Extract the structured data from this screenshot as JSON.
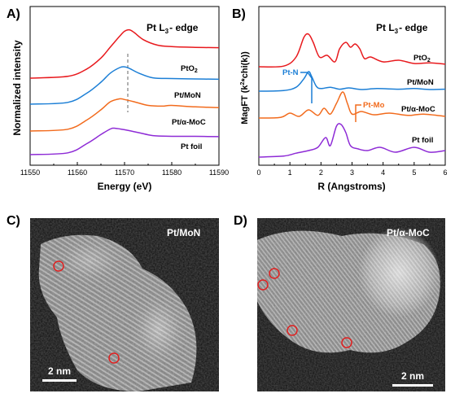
{
  "panels": {
    "a": {
      "letter": "A)",
      "title_main": "Pt L",
      "title_sub": "3",
      "title_tail": "- edge",
      "ylabel": "Normalized intensity",
      "xlabel": "Energy (eV)",
      "xticks": [
        "11550",
        "11560",
        "11570",
        "11580",
        "11590"
      ],
      "colors": {
        "PtO2": "#e8191d",
        "Pt/MoN": "#1c7fd6",
        "Pt/a-MoC": "#f26b1d",
        "Pt foil": "#8e2bd6"
      },
      "labels": {
        "PtO2_main": "PtO",
        "PtO2_sub": "2",
        "PtMoN": "Pt/MoN",
        "PtMoC": "Pt/α-MoC",
        "Ptfoil": "Pt foil"
      }
    },
    "b": {
      "letter": "B)",
      "title_main": "Pt L",
      "title_sub": "3",
      "title_tail": "- edge",
      "ylabel_pre": "MagFT (k",
      "ylabel_sup": "2",
      "ylabel_post": "*chi(k))",
      "xlabel": "R (Angstroms)",
      "xticks": [
        "0",
        "1",
        "2",
        "3",
        "4",
        "5",
        "6"
      ],
      "labels": {
        "PtO2_main": "PtO",
        "PtO2_sub": "2",
        "PtMoN": "Pt/MoN",
        "PtMoC": "Pt/α-MoC",
        "Ptfoil": "Pt foil"
      },
      "annotations": {
        "ptn": "Pt-N",
        "ptmo": "Pt-Mo"
      }
    },
    "c": {
      "letter": "C)",
      "label": "Pt/MoN",
      "scale": "2 nm"
    },
    "d": {
      "letter": "D)",
      "label": "Pt/α-MoC",
      "scale": "2 nm"
    }
  },
  "chart_data": [
    {
      "type": "line",
      "title": "Pt L3- edge",
      "xlabel": "Energy (eV)",
      "ylabel": "Normalized intensity",
      "xlim": [
        11550,
        11590
      ],
      "series": [
        {
          "name": "PtO2",
          "x": [
            11550,
            11558,
            11562,
            11565,
            11567,
            11569,
            11570,
            11571,
            11572,
            11574,
            11577,
            11580,
            11585,
            11590
          ],
          "y": [
            0.0,
            0.05,
            0.25,
            0.55,
            0.85,
            1.15,
            1.28,
            1.32,
            1.25,
            1.05,
            0.9,
            0.86,
            0.84,
            0.83
          ]
        },
        {
          "name": "Pt/MoN",
          "x": [
            11550,
            11558,
            11562,
            11565,
            11567,
            11569,
            11570,
            11571,
            11573,
            11576,
            11580,
            11585,
            11590
          ],
          "y": [
            0.0,
            0.05,
            0.3,
            0.6,
            0.85,
            1.0,
            1.02,
            0.98,
            0.85,
            0.72,
            0.7,
            0.69,
            0.68
          ]
        },
        {
          "name": "Pt/α-MoC",
          "x": [
            11550,
            11558,
            11562,
            11565,
            11567,
            11569,
            11570,
            11572,
            11575,
            11578,
            11580,
            11585,
            11590
          ],
          "y": [
            0.0,
            0.05,
            0.3,
            0.58,
            0.8,
            0.88,
            0.86,
            0.8,
            0.7,
            0.68,
            0.7,
            0.66,
            0.64
          ]
        },
        {
          "name": "Pt foil",
          "x": [
            11550,
            11558,
            11562,
            11565,
            11567,
            11568,
            11570,
            11573,
            11576,
            11580,
            11585,
            11590
          ],
          "y": [
            0.0,
            0.05,
            0.3,
            0.55,
            0.7,
            0.72,
            0.68,
            0.6,
            0.52,
            0.5,
            0.5,
            0.49
          ]
        }
      ],
      "annotations": [
        "dashed vertical line at 11570"
      ]
    },
    {
      "type": "line",
      "title": "Pt L3- edge",
      "xlabel": "R (Angstroms)",
      "ylabel": "MagFT (k2*chi(k))",
      "xlim": [
        0,
        6
      ],
      "series": [
        {
          "name": "PtO2",
          "x": [
            0,
            0.8,
            1.2,
            1.45,
            1.6,
            1.75,
            1.95,
            2.2,
            2.45,
            2.6,
            2.8,
            2.95,
            3.1,
            3.25,
            3.4,
            3.6,
            4.0,
            4.5,
            5.0,
            5.5,
            6.0
          ],
          "y": [
            0,
            0.02,
            0.3,
            0.9,
            1.0,
            0.75,
            0.3,
            0.35,
            0.15,
            0.55,
            0.75,
            0.6,
            0.7,
            0.55,
            0.25,
            0.3,
            0.15,
            0.2,
            0.1,
            0.12,
            0.08
          ]
        },
        {
          "name": "Pt/MoN",
          "x": [
            0,
            0.8,
            1.2,
            1.45,
            1.6,
            1.7,
            1.85,
            2.0,
            2.3,
            2.6,
            2.9,
            3.3,
            3.8,
            4.5,
            5.0,
            5.5,
            6.0
          ],
          "y": [
            0,
            0.02,
            0.12,
            0.38,
            0.6,
            0.45,
            0.15,
            0.08,
            0.12,
            0.06,
            0.1,
            0.05,
            0.08,
            0.06,
            0.08,
            0.05,
            0.06
          ]
        },
        {
          "name": "Pt/α-MoC",
          "x": [
            0,
            0.7,
            1.0,
            1.3,
            1.6,
            1.9,
            2.1,
            2.3,
            2.5,
            2.7,
            2.85,
            3.0,
            3.3,
            3.7,
            4.2,
            4.8,
            5.3,
            6.0
          ],
          "y": [
            0,
            0.02,
            0.15,
            0.05,
            0.25,
            0.08,
            0.3,
            0.12,
            0.45,
            0.8,
            0.45,
            0.12,
            0.2,
            0.1,
            0.15,
            0.08,
            0.12,
            0.05
          ]
        },
        {
          "name": "Pt foil",
          "x": [
            0,
            0.8,
            1.2,
            1.6,
            1.9,
            2.15,
            2.3,
            2.5,
            2.65,
            2.8,
            2.95,
            3.2,
            3.5,
            3.9,
            4.4,
            5.0,
            5.5,
            6.0
          ],
          "y": [
            0,
            0.03,
            0.12,
            0.2,
            0.3,
            0.6,
            0.35,
            0.95,
            1.0,
            0.75,
            0.35,
            0.25,
            0.2,
            0.3,
            0.15,
            0.3,
            0.15,
            0.2
          ]
        }
      ],
      "annotations": [
        "Pt-N",
        "Pt-Mo"
      ]
    }
  ]
}
